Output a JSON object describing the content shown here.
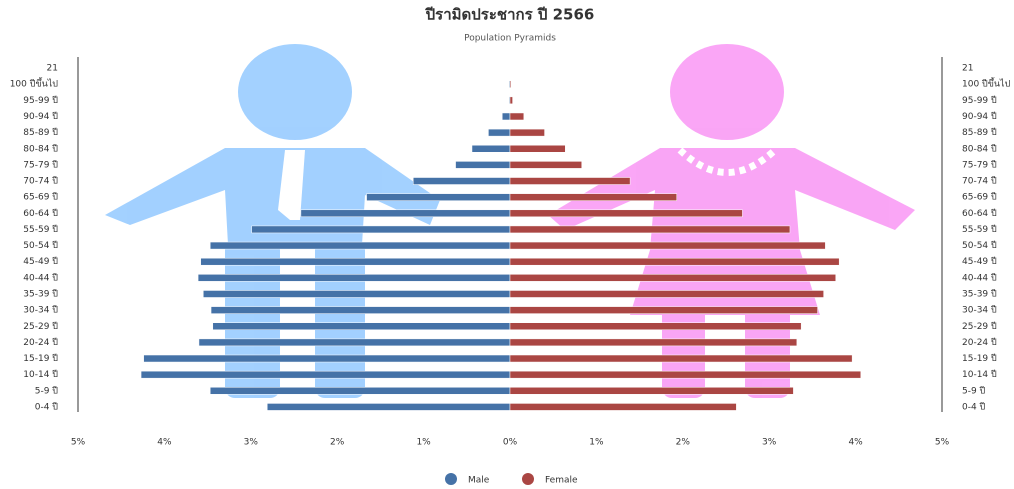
{
  "chart_data": {
    "type": "pyramid",
    "title": "ปีรามิดประชากร ปี 2566",
    "subtitle": "Population Pyramids",
    "categories": [
      "21",
      "100 ปีขึ้นไป",
      "95-99 ปี",
      "90-94 ปี",
      "85-89 ปี",
      "80-84 ปี",
      "75-79 ปี",
      "70-74 ปี",
      "65-69 ปี",
      "60-64 ปี",
      "55-59 ปี",
      "50-54 ปี",
      "45-49 ปี",
      "40-44 ปี",
      "35-39 ปี",
      "30-34 ปี",
      "25-29 ปี",
      "20-24 ปี",
      "15-19 ปี",
      "10-14 ปี",
      "5-9 ปี",
      "0-4 ปี"
    ],
    "series": [
      {
        "name": "Male",
        "color": "#4572a7",
        "values": [
          null,
          -0.01,
          -0.01,
          -0.09,
          -0.25,
          -0.44,
          -0.63,
          -1.12,
          -1.66,
          -2.42,
          -2.99,
          -3.47,
          -3.58,
          -3.61,
          -3.55,
          -3.46,
          -3.44,
          -3.6,
          -4.24,
          -4.27,
          -3.47,
          -2.81
        ]
      },
      {
        "name": "Female",
        "color": "#aa4643",
        "values": [
          null,
          0.01,
          0.03,
          0.16,
          0.4,
          0.64,
          0.83,
          1.39,
          1.93,
          2.69,
          3.24,
          3.65,
          3.81,
          3.77,
          3.63,
          3.56,
          3.37,
          3.32,
          3.96,
          4.06,
          3.28,
          2.62
        ]
      }
    ],
    "xlim": [
      -5,
      5
    ],
    "xticks": [
      {
        "value": -5,
        "label": "5%"
      },
      {
        "value": -4,
        "label": "4%"
      },
      {
        "value": -3,
        "label": "3%"
      },
      {
        "value": -2,
        "label": "2%"
      },
      {
        "value": -1,
        "label": "1%"
      },
      {
        "value": 0,
        "label": "0%"
      },
      {
        "value": 1,
        "label": "1%"
      },
      {
        "value": 2,
        "label": "2%"
      },
      {
        "value": 3,
        "label": "3%"
      },
      {
        "value": 4,
        "label": "4%"
      },
      {
        "value": 5,
        "label": "5%"
      }
    ],
    "legend": "bottom"
  }
}
